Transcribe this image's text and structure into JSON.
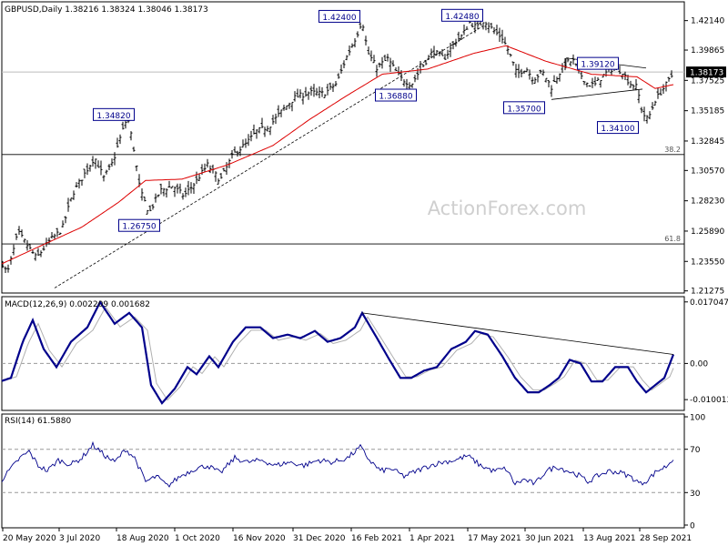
{
  "chart_data": [
    {
      "panel": "price",
      "type": "ohlc",
      "title": "GBPUSD,Daily",
      "ohlc_header": "1.38216 1.38324 1.38046 1.38173",
      "current_price": 1.38173,
      "current_price_label": "1.38173",
      "ylim": [
        1.2125,
        1.4345
      ],
      "y_ticks": [
        1.4214,
        1.39865,
        1.37525,
        1.35185,
        1.32845,
        1.3057,
        1.2823,
        1.2589,
        1.2355,
        1.21275
      ],
      "y_tick_labels": [
        "1.42140",
        "1.39865",
        "1.37525",
        "1.35185",
        "1.32845",
        "1.30570",
        "1.28230",
        "1.25890",
        "1.23550",
        "1.21275"
      ],
      "watermark": "ActionForex.com",
      "x_tick_labels": [
        "20 May 2020",
        "3 Jul 2020",
        "18 Aug 2020",
        "1 Oct 2020",
        "16 Nov 2020",
        "31 Dec 2020",
        "16 Feb 2021",
        "1 Apr 2021",
        "17 May 2021",
        "30 Jun 2021",
        "13 Aug 2021",
        "28 Sep 2021"
      ],
      "annotations": [
        {
          "text": "1.34820",
          "value": 1.3482
        },
        {
          "text": "1.26750",
          "value": 1.2675
        },
        {
          "text": "1.42400",
          "value": 1.424
        },
        {
          "text": "1.36880",
          "value": 1.3688
        },
        {
          "text": "1.42480",
          "value": 1.4248
        },
        {
          "text": "1.35700",
          "value": 1.357
        },
        {
          "text": "1.39120",
          "value": 1.3912
        },
        {
          "text": "1.34100",
          "value": 1.341
        }
      ],
      "fib_levels": [
        {
          "label": "38.2",
          "value": 1.318
        },
        {
          "label": "61.8",
          "value": 1.249
        }
      ],
      "close_anchors": [
        [
          0,
          1.238
        ],
        [
          8,
          1.226
        ],
        [
          20,
          1.258
        ],
        [
          30,
          1.248
        ],
        [
          40,
          1.238
        ],
        [
          55,
          1.252
        ],
        [
          68,
          1.26
        ],
        [
          80,
          1.288
        ],
        [
          92,
          1.302
        ],
        [
          104,
          1.316
        ],
        [
          114,
          1.3
        ],
        [
          124,
          1.312
        ],
        [
          133,
          1.333
        ],
        [
          140,
          1.347
        ],
        [
          146,
          1.327
        ],
        [
          154,
          1.29
        ],
        [
          164,
          1.273
        ],
        [
          176,
          1.29
        ],
        [
          190,
          1.294
        ],
        [
          202,
          1.286
        ],
        [
          214,
          1.296
        ],
        [
          228,
          1.31
        ],
        [
          242,
          1.298
        ],
        [
          256,
          1.318
        ],
        [
          270,
          1.326
        ],
        [
          282,
          1.336
        ],
        [
          296,
          1.34
        ],
        [
          310,
          1.352
        ],
        [
          324,
          1.362
        ],
        [
          340,
          1.366
        ],
        [
          356,
          1.365
        ],
        [
          370,
          1.373
        ],
        [
          380,
          1.392
        ],
        [
          392,
          1.41
        ],
        [
          398,
          1.422
        ],
        [
          404,
          1.397
        ],
        [
          414,
          1.385
        ],
        [
          426,
          1.392
        ],
        [
          440,
          1.377
        ],
        [
          452,
          1.372
        ],
        [
          464,
          1.386
        ],
        [
          476,
          1.398
        ],
        [
          488,
          1.392
        ],
        [
          500,
          1.405
        ],
        [
          508,
          1.41
        ],
        [
          516,
          1.42
        ],
        [
          524,
          1.416
        ],
        [
          532,
          1.422
        ],
        [
          542,
          1.414
        ],
        [
          552,
          1.408
        ],
        [
          560,
          1.396
        ],
        [
          568,
          1.38
        ],
        [
          578,
          1.385
        ],
        [
          586,
          1.376
        ],
        [
          596,
          1.382
        ],
        [
          606,
          1.37
        ],
        [
          614,
          1.38
        ],
        [
          622,
          1.389
        ],
        [
          630,
          1.39
        ],
        [
          638,
          1.38
        ],
        [
          646,
          1.372
        ],
        [
          654,
          1.372
        ],
        [
          664,
          1.38
        ],
        [
          674,
          1.385
        ],
        [
          684,
          1.382
        ],
        [
          692,
          1.373
        ],
        [
          700,
          1.37
        ],
        [
          706,
          1.35
        ],
        [
          712,
          1.345
        ],
        [
          720,
          1.36
        ],
        [
          728,
          1.368
        ],
        [
          734,
          1.374
        ],
        [
          740,
          1.381
        ]
      ],
      "sma_anchors": [
        [
          0,
          1.233
        ],
        [
          40,
          1.246
        ],
        [
          90,
          1.262
        ],
        [
          130,
          1.281
        ],
        [
          160,
          1.298
        ],
        [
          200,
          1.299
        ],
        [
          250,
          1.31
        ],
        [
          300,
          1.325
        ],
        [
          340,
          1.345
        ],
        [
          380,
          1.363
        ],
        [
          420,
          1.38
        ],
        [
          470,
          1.384
        ],
        [
          520,
          1.396
        ],
        [
          556,
          1.402
        ],
        [
          600,
          1.39
        ],
        [
          650,
          1.38
        ],
        [
          700,
          1.378
        ],
        [
          720,
          1.369
        ],
        [
          740,
          1.372
        ]
      ]
    },
    {
      "panel": "macd",
      "type": "line",
      "title": "MACD(12,26,9) 0.002209 0.001682",
      "ylim": [
        -0.0125,
        0.018
      ],
      "y_ticks": [
        0.017047,
        0.0,
        -0.010013
      ],
      "y_tick_labels": [
        "0.017047",
        "0.00",
        "-0.010013"
      ],
      "macd_anchors": [
        [
          0,
          -0.005
        ],
        [
          12,
          -0.004
        ],
        [
          25,
          0.006
        ],
        [
          36,
          0.012
        ],
        [
          48,
          0.004
        ],
        [
          62,
          -0.001
        ],
        [
          78,
          0.006
        ],
        [
          96,
          0.01
        ],
        [
          110,
          0.017
        ],
        [
          126,
          0.011
        ],
        [
          142,
          0.014
        ],
        [
          156,
          0.01
        ],
        [
          166,
          -0.006
        ],
        [
          178,
          -0.011
        ],
        [
          192,
          -0.007
        ],
        [
          206,
          -0.001
        ],
        [
          216,
          -0.003
        ],
        [
          230,
          0.002
        ],
        [
          240,
          -0.001
        ],
        [
          256,
          0.006
        ],
        [
          270,
          0.01
        ],
        [
          286,
          0.01
        ],
        [
          300,
          0.007
        ],
        [
          316,
          0.008
        ],
        [
          330,
          0.007
        ],
        [
          346,
          0.009
        ],
        [
          360,
          0.006
        ],
        [
          374,
          0.007
        ],
        [
          390,
          0.01
        ],
        [
          398,
          0.014
        ],
        [
          412,
          0.008
        ],
        [
          428,
          0.001
        ],
        [
          440,
          -0.004
        ],
        [
          452,
          -0.004
        ],
        [
          466,
          -0.002
        ],
        [
          480,
          -0.001
        ],
        [
          496,
          0.004
        ],
        [
          512,
          0.006
        ],
        [
          522,
          0.009
        ],
        [
          536,
          0.008
        ],
        [
          552,
          0.002
        ],
        [
          566,
          -0.004
        ],
        [
          580,
          -0.008
        ],
        [
          592,
          -0.008
        ],
        [
          604,
          -0.006
        ],
        [
          614,
          -0.004
        ],
        [
          626,
          0.001
        ],
        [
          638,
          0.0
        ],
        [
          650,
          -0.005
        ],
        [
          662,
          -0.005
        ],
        [
          676,
          -0.001
        ],
        [
          690,
          -0.001
        ],
        [
          700,
          -0.005
        ],
        [
          710,
          -0.008
        ],
        [
          720,
          -0.006
        ],
        [
          730,
          -0.004
        ],
        [
          740,
          0.0025
        ]
      ],
      "signal_offset": 6,
      "trendline": [
        [
          398,
          0.014
        ],
        [
          740,
          0.0025
        ]
      ]
    },
    {
      "panel": "rsi",
      "type": "line",
      "title": "RSI(14) 61.5880",
      "ylim": [
        0,
        100
      ],
      "y_ticks": [
        100,
        70,
        30,
        0
      ],
      "y_tick_labels": [
        "100",
        "70",
        "30",
        "0"
      ],
      "rsi_anchors": [
        [
          0,
          40
        ],
        [
          10,
          50
        ],
        [
          22,
          62
        ],
        [
          32,
          68
        ],
        [
          42,
          55
        ],
        [
          52,
          50
        ],
        [
          64,
          60
        ],
        [
          78,
          56
        ],
        [
          90,
          62
        ],
        [
          102,
          74
        ],
        [
          114,
          65
        ],
        [
          126,
          58
        ],
        [
          138,
          70
        ],
        [
          148,
          62
        ],
        [
          160,
          40
        ],
        [
          172,
          45
        ],
        [
          184,
          36
        ],
        [
          198,
          45
        ],
        [
          214,
          52
        ],
        [
          228,
          55
        ],
        [
          242,
          48
        ],
        [
          258,
          62
        ],
        [
          272,
          58
        ],
        [
          288,
          60
        ],
        [
          302,
          55
        ],
        [
          318,
          58
        ],
        [
          334,
          55
        ],
        [
          350,
          60
        ],
        [
          366,
          58
        ],
        [
          382,
          62
        ],
        [
          396,
          72
        ],
        [
          406,
          60
        ],
        [
          418,
          50
        ],
        [
          430,
          52
        ],
        [
          444,
          45
        ],
        [
          458,
          50
        ],
        [
          472,
          55
        ],
        [
          486,
          58
        ],
        [
          500,
          60
        ],
        [
          514,
          64
        ],
        [
          528,
          55
        ],
        [
          542,
          50
        ],
        [
          556,
          52
        ],
        [
          566,
          38
        ],
        [
          576,
          42
        ],
        [
          588,
          38
        ],
        [
          600,
          50
        ],
        [
          612,
          54
        ],
        [
          624,
          50
        ],
        [
          636,
          46
        ],
        [
          646,
          40
        ],
        [
          658,
          46
        ],
        [
          670,
          50
        ],
        [
          684,
          48
        ],
        [
          694,
          44
        ],
        [
          704,
          38
        ],
        [
          712,
          42
        ],
        [
          722,
          50
        ],
        [
          732,
          54
        ],
        [
          740,
          61.588
        ]
      ]
    }
  ],
  "colors": {
    "candle": "#000000",
    "sma": "#dd0000",
    "macd": "#00008b",
    "signal": "#b0b0b0",
    "trendline": "#000000",
    "level_line": "#000000",
    "box_border": "#00008b",
    "box_text": "#00008b",
    "current_label_bg": "#000000",
    "current_label_text": "#ffffff",
    "grid_dash": "#999999",
    "watermark": "#cfcfcf"
  }
}
